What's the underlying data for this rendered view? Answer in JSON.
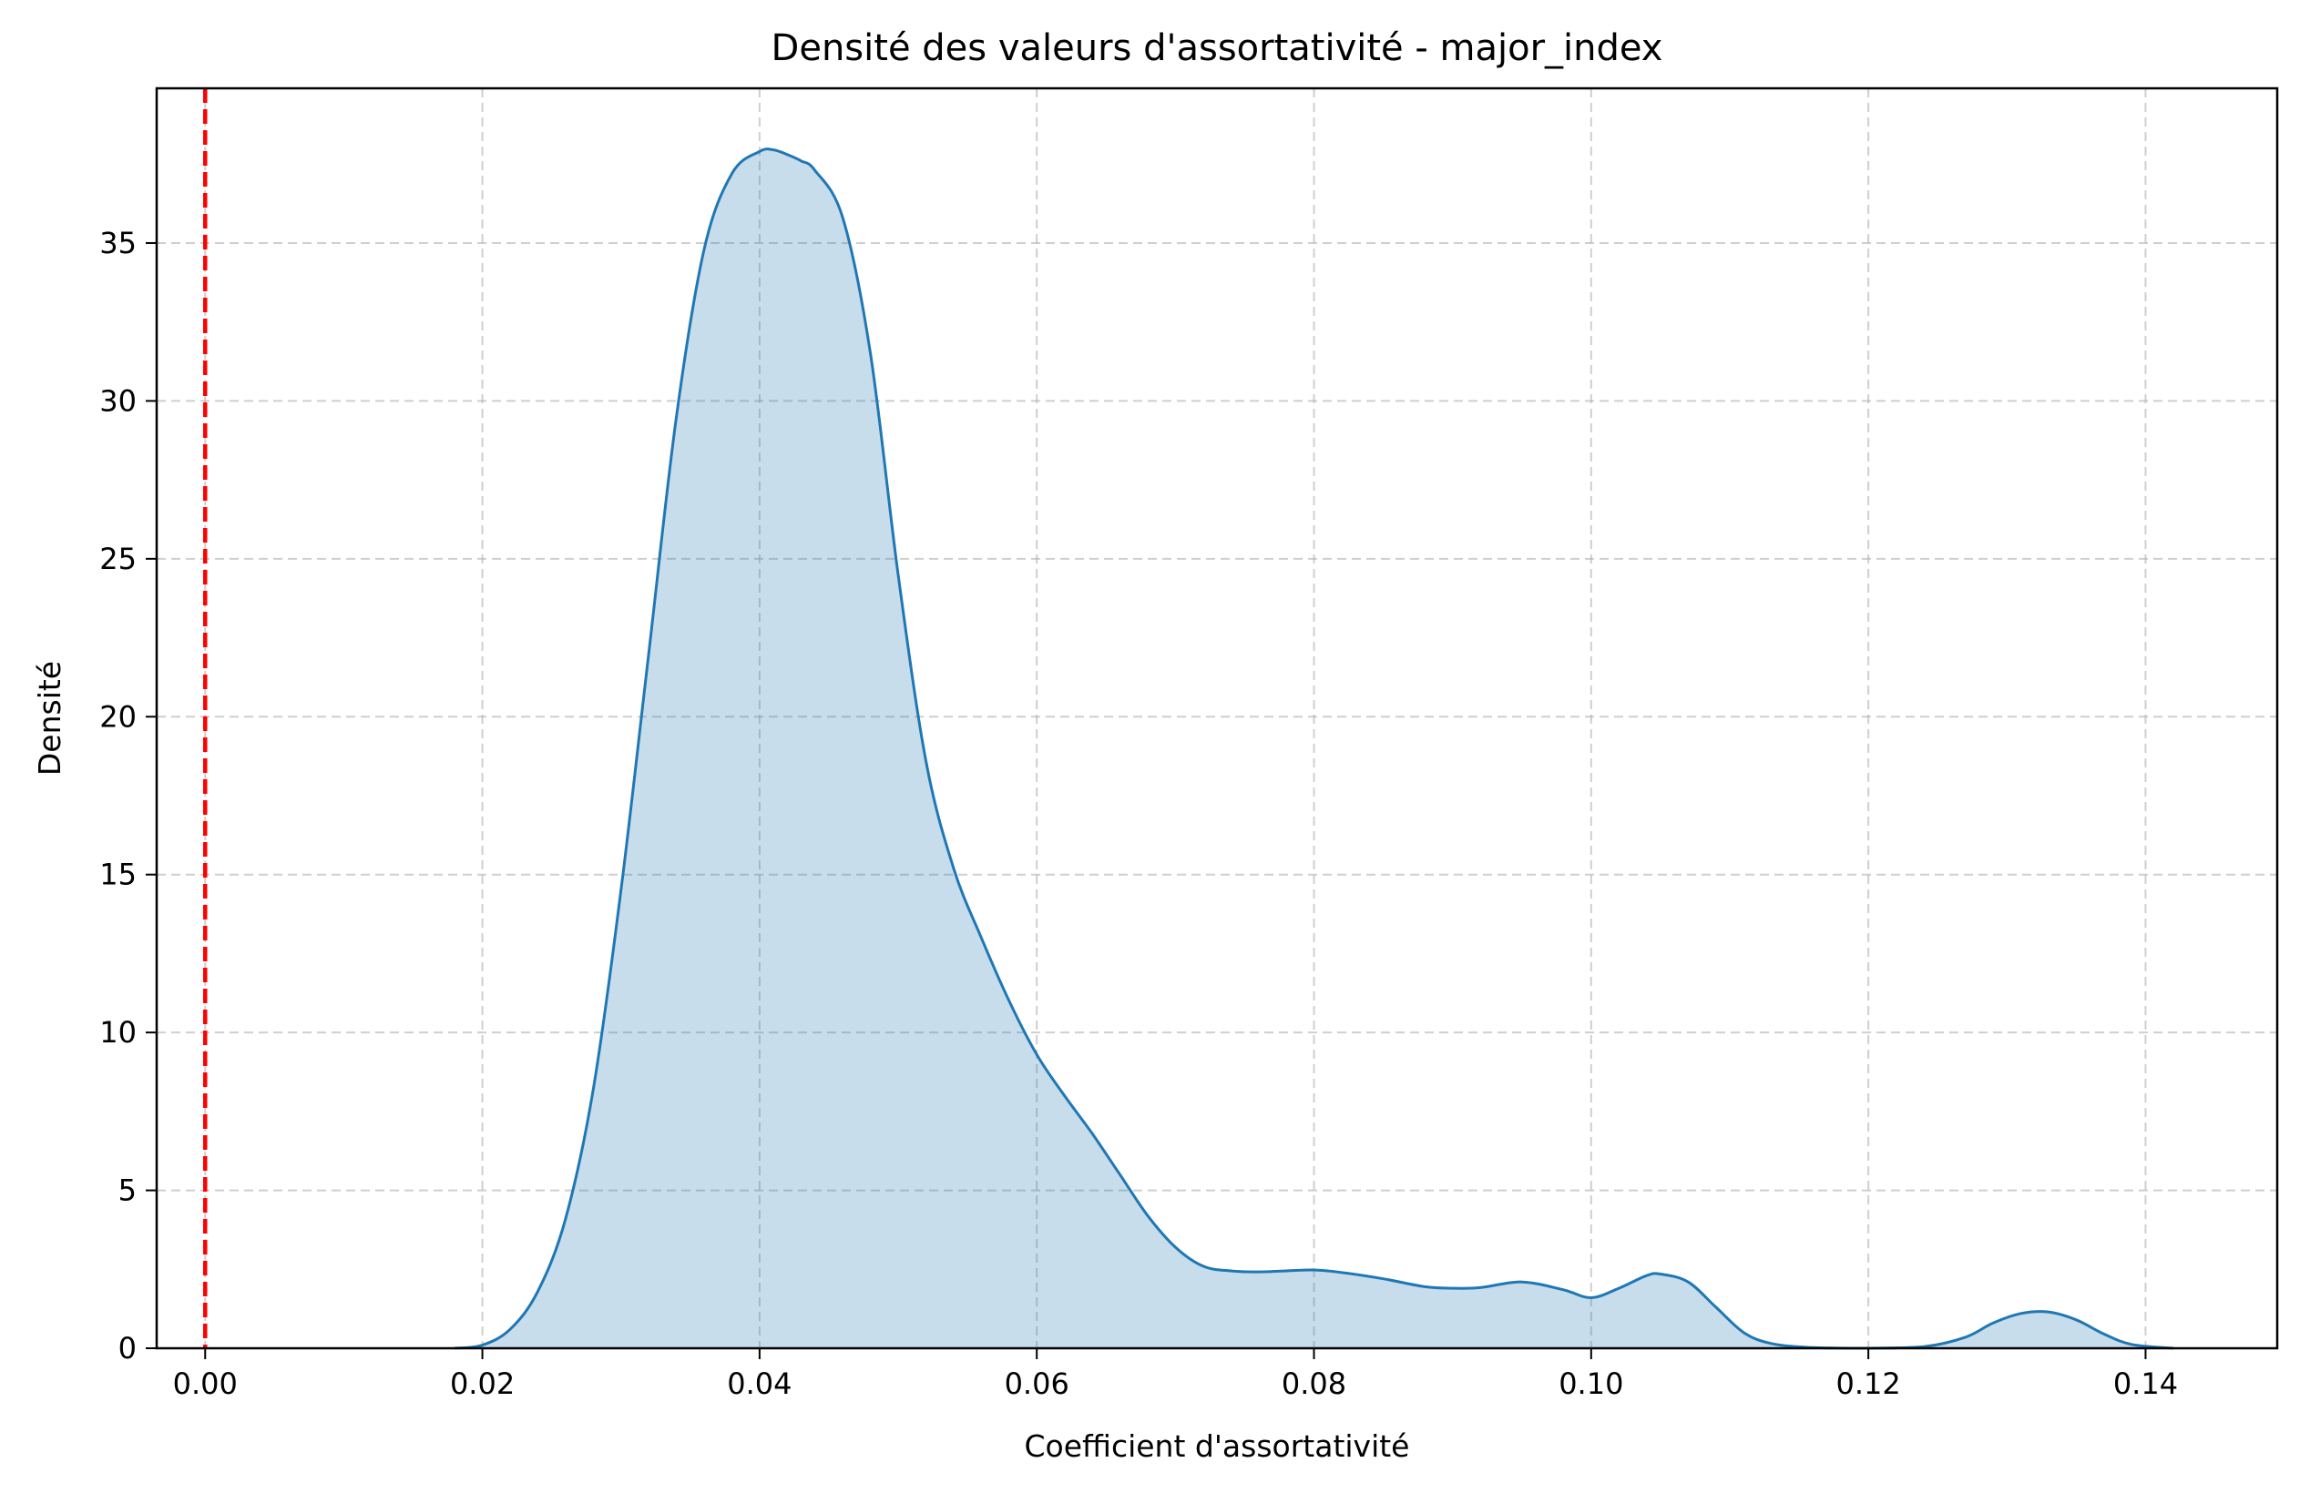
{
  "chart_data": {
    "type": "area",
    "title": "Densité des valeurs d'assortativité - major_index",
    "xlabel": "Coefficient d'assortativité",
    "ylabel": "Densité",
    "xlim": [
      -0.0035,
      0.1495
    ],
    "ylim": [
      0,
      39.9
    ],
    "xticks": [
      0.0,
      0.02,
      0.04,
      0.06,
      0.08,
      0.1,
      0.12,
      0.14
    ],
    "xtick_labels": [
      "0.00",
      "0.02",
      "0.04",
      "0.06",
      "0.08",
      "0.10",
      "0.12",
      "0.14"
    ],
    "yticks": [
      0,
      5,
      10,
      15,
      20,
      25,
      30,
      35
    ],
    "ytick_labels": [
      "0",
      "5",
      "10",
      "15",
      "20",
      "25",
      "30",
      "35"
    ],
    "grid": true,
    "colors": {
      "kde": "#1f77b4",
      "reference_line": "#ff0000"
    },
    "reference_line": {
      "x": 0.0,
      "style": "dashed"
    },
    "series": [
      {
        "x": [
          0.018,
          0.02,
          0.022,
          0.024,
          0.026,
          0.028,
          0.03,
          0.032,
          0.034,
          0.036,
          0.038,
          0.04,
          0.041,
          0.042,
          0.043,
          0.044,
          0.046,
          0.048,
          0.05,
          0.052,
          0.054,
          0.056,
          0.058,
          0.06,
          0.062,
          0.064,
          0.066,
          0.068,
          0.07,
          0.072,
          0.074,
          0.076,
          0.078,
          0.08,
          0.082,
          0.085,
          0.088,
          0.09,
          0.092,
          0.095,
          0.098,
          0.1,
          0.102,
          0.104,
          0.105,
          0.107,
          0.109,
          0.111,
          0.113,
          0.116,
          0.12,
          0.124,
          0.127,
          0.129,
          0.131,
          0.133,
          0.135,
          0.137,
          0.139,
          0.142
        ],
        "y": [
          0.0,
          0.1,
          0.6,
          1.8,
          4.1,
          8.2,
          14.5,
          22.0,
          29.5,
          34.8,
          37.2,
          37.9,
          37.95,
          37.8,
          37.6,
          37.3,
          35.8,
          31.5,
          24.5,
          18.6,
          15.2,
          13.0,
          11.0,
          9.3,
          8.0,
          6.8,
          5.5,
          4.2,
          3.2,
          2.6,
          2.45,
          2.42,
          2.45,
          2.48,
          2.4,
          2.2,
          1.95,
          1.9,
          1.92,
          2.1,
          1.85,
          1.6,
          1.9,
          2.3,
          2.35,
          2.1,
          1.3,
          0.5,
          0.15,
          0.02,
          0.0,
          0.05,
          0.35,
          0.8,
          1.1,
          1.15,
          0.9,
          0.45,
          0.12,
          0.0
        ]
      }
    ]
  }
}
